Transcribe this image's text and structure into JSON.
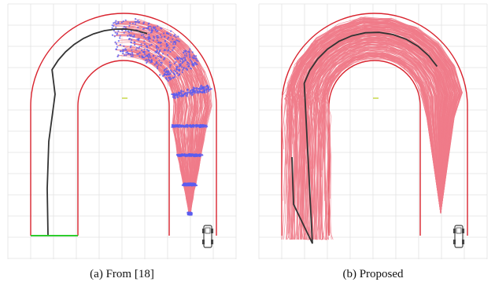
{
  "figure": {
    "captions": {
      "a": "(a) From [18]",
      "b": "(b) Proposed"
    },
    "colors": {
      "grid": "#e2e2e2",
      "track_boundary": "#d9232e",
      "sampled_trajectory": "#f07b8a",
      "sample_point": "#5b5cf0",
      "reference_path": "#333333",
      "start_line": "#2ecc2e",
      "goal_marker": "#c8d84a",
      "vehicle": "#444444"
    },
    "icons": {
      "vehicle": "car-icon"
    }
  }
}
